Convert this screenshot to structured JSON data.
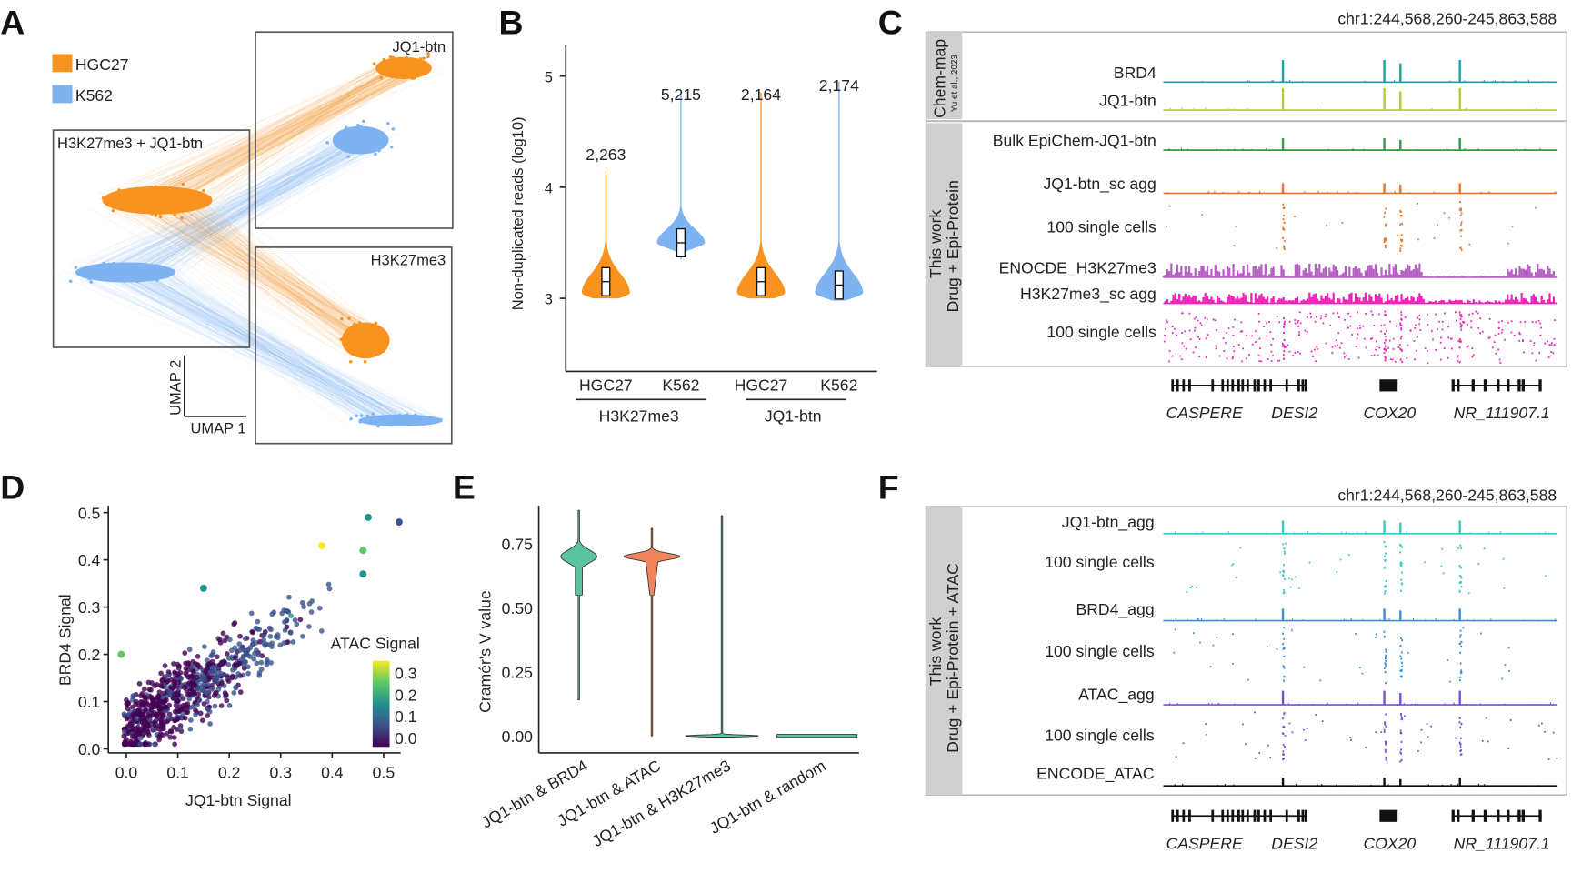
{
  "colors": {
    "hgc27": "#f7931e",
    "k562": "#7fb2f0",
    "brd4": "#1aa0a8",
    "jq1": "#b5cc3a",
    "bulk": "#2e9e4a",
    "jq1sc": "#e8762b",
    "encode_k27": "#b55fc2",
    "k27sc": "#ee22b9",
    "f_jq1": "#3cc7c9",
    "f_brd4": "#3a8fe0",
    "f_atac": "#7c4fd8",
    "encode_atac": "#111111",
    "violin_e1": "#5cc3a0",
    "violin_e2": "#f2845c"
  },
  "panels": {
    "a": "A",
    "b": "B",
    "c": "C",
    "d": "D",
    "e": "E",
    "f": "F"
  },
  "panel_a": {
    "legend": [
      "HGC27",
      "K562"
    ],
    "boxes": [
      "JQ1-btn",
      "H3K27me3 + JQ1-btn",
      "H3K27me3"
    ],
    "axis_x": "UMAP 1",
    "axis_y": "UMAP 2"
  },
  "panel_c": {
    "region": "chr1:244,568,260-245,863,588",
    "section1": {
      "title": "Chem-map",
      "subtitle": "Yu et al., 2023"
    },
    "section2": {
      "title": "This work",
      "subtitle": "Drug + Epi-Protein"
    },
    "tracks": [
      "BRD4",
      "JQ1-btn",
      "Bulk EpiChem-JQ1-btn",
      "JQ1-btn_sc agg",
      "100 single cells",
      "ENOCDE_H3K27me3",
      "H3K27me3_sc agg",
      "100 single cells"
    ],
    "genes": [
      "CASPERE",
      "DESI2",
      "COX20",
      "NR_111907.1"
    ]
  },
  "panel_f": {
    "region": "chr1:244,568,260-245,863,588",
    "section": {
      "title": "This work",
      "subtitle": "Drug + Epi-Protein + ATAC"
    },
    "tracks": [
      "JQ1-btn_agg",
      "100 single cells",
      "BRD4_agg",
      "100 single cells",
      "ATAC_agg",
      "100 single cells",
      "ENCODE_ATAC"
    ],
    "genes": [
      "CASPERE",
      "DESI2",
      "COX20",
      "NR_111907.1"
    ]
  },
  "genome": {
    "start_mb": 244.568,
    "end_mb": 245.864,
    "peaks_mb": [
      244.962,
      245.296,
      245.349,
      245.545
    ],
    "broad_regions_mb": [
      [
        244.57,
        244.97
      ],
      [
        245.0,
        245.43
      ],
      [
        245.7,
        245.86
      ]
    ]
  },
  "chart_data": [
    {
      "panel": "B",
      "type": "violin",
      "ylabel": "Non-duplicated reads (log10)",
      "yticks": [
        "3",
        "4",
        "5"
      ],
      "ylim": [
        2.5,
        5.3
      ],
      "categories": [
        "HGC27",
        "K562",
        "HGC27",
        "K562"
      ],
      "groups": [
        "H3K27me3",
        "JQ1-btn"
      ],
      "counts": [
        "2,263",
        "5,215",
        "2,164",
        "2,174"
      ],
      "medians": [
        3.15,
        3.5,
        3.15,
        3.12
      ],
      "min": [
        3.0,
        3.35,
        3.0,
        2.98
      ],
      "max": [
        4.15,
        4.85,
        4.85,
        4.95
      ],
      "modes": [
        3.05,
        3.5,
        3.05,
        3.05
      ]
    },
    {
      "panel": "D",
      "type": "scatter",
      "xlabel": "JQ1-btn Signal",
      "ylabel": "BRD4 Signal",
      "xticks": [
        "0.0",
        "0.1",
        "0.2",
        "0.3",
        "0.4",
        "0.5"
      ],
      "yticks": [
        "0.0",
        "0.1",
        "0.2",
        "0.3",
        "0.4",
        "0.5"
      ],
      "xlim": [
        -0.03,
        0.53
      ],
      "ylim": [
        0,
        0.51
      ],
      "color_label": "ATAC Signal",
      "color_ticks": [
        "0.3",
        "0.2",
        "0.1",
        "0.0"
      ],
      "color_range": [
        0,
        0.35
      ],
      "n_points": 750,
      "trend_slope": 0.8,
      "trend_intercept": 0.04,
      "highlight_points": [
        {
          "x": 0.47,
          "y": 0.49,
          "c": 0.15
        },
        {
          "x": 0.53,
          "y": 0.48,
          "c": 0.12
        },
        {
          "x": 0.38,
          "y": 0.43,
          "c": 0.33
        },
        {
          "x": 0.46,
          "y": 0.42,
          "c": 0.25
        },
        {
          "x": 0.46,
          "y": 0.37,
          "c": 0.18
        },
        {
          "x": -0.01,
          "y": 0.2,
          "c": 0.3
        },
        {
          "x": 0.15,
          "y": 0.34,
          "c": 0.22
        }
      ]
    },
    {
      "panel": "E",
      "type": "violin",
      "ylabel": "Cramér's V value",
      "yticks": [
        "0.00",
        "0.25",
        "0.50",
        "0.75"
      ],
      "ylim": [
        -0.02,
        0.9
      ],
      "categories": [
        "JQ1-btn & BRD4",
        "JQ1-btn & ATAC",
        "JQ1-btn & H3K27me3",
        "JQ1-btn & random"
      ],
      "modes": [
        0.7,
        0.7,
        0.0,
        0.0
      ],
      "min": [
        0.14,
        0.0,
        -0.005,
        -0.004
      ],
      "max": [
        0.88,
        0.81,
        0.86,
        0.004
      ]
    }
  ]
}
